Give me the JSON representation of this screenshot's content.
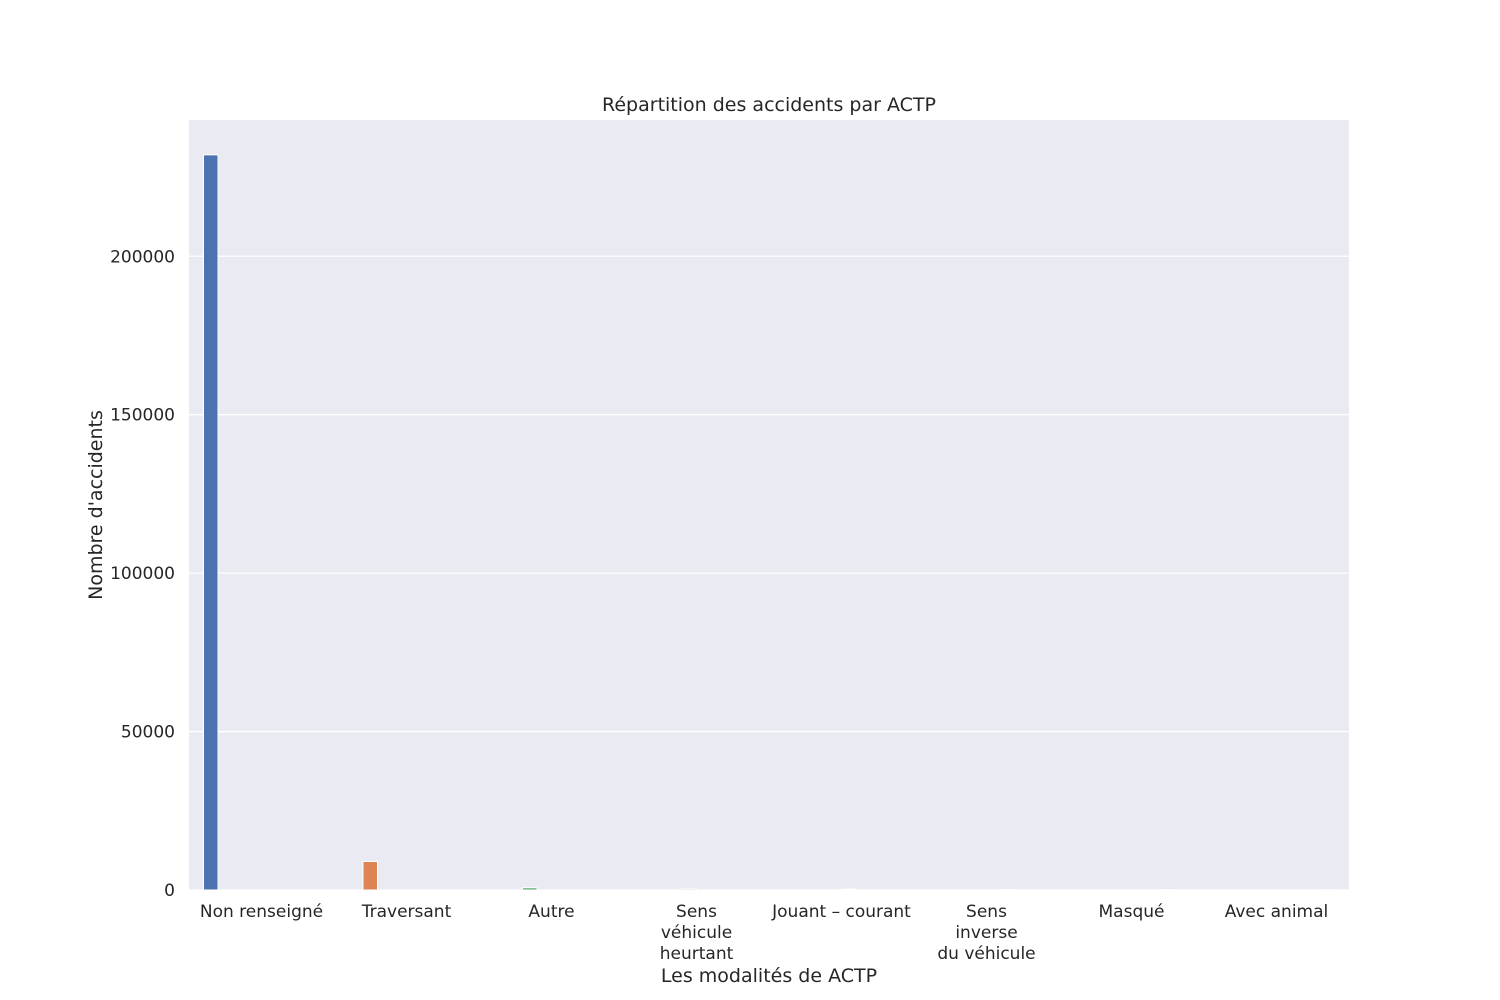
{
  "chart_data": {
    "type": "bar",
    "title": "Répartition des accidents par ACTP",
    "xlabel": "Les modalités de ACTP",
    "ylabel": "Nombre d'accidents",
    "categories": [
      [
        "Non renseigné"
      ],
      [
        "Traversant"
      ],
      [
        "Autre"
      ],
      [
        "Sens",
        "véhicule",
        "heurtant"
      ],
      [
        "Jouant – courant"
      ],
      [
        "Sens",
        "inverse",
        "du véhicule"
      ],
      [
        "Masqué"
      ],
      [
        "Avec animal"
      ]
    ],
    "values": [
      232000,
      9000,
      700,
      350,
      300,
      150,
      100,
      50
    ],
    "colors": [
      "#4c72b0",
      "#dd8452",
      "#55a868",
      "#c44e52",
      "#8172b3",
      "#937860",
      "#da8bc3",
      "#8c8c8c"
    ],
    "yticks": [
      0,
      50000,
      100000,
      150000,
      200000
    ],
    "ylim": [
      0,
      243000
    ],
    "grid": true,
    "background": "#eaeaf2",
    "grid_color": "#ffffff"
  }
}
